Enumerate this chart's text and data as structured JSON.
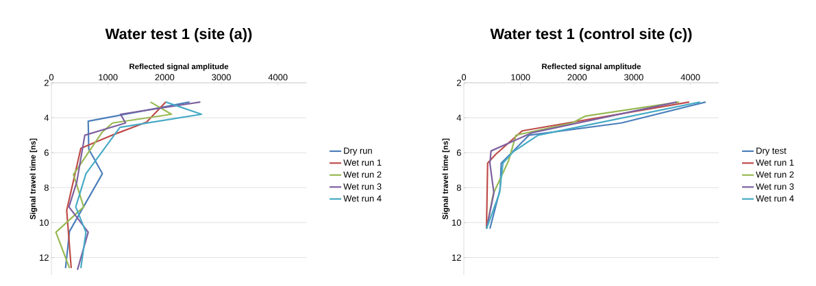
{
  "chart_data": [
    {
      "type": "line",
      "title": "Water test 1 (site (a))",
      "xlabel": "Reflected signal amplitude",
      "ylabel": "Signal travel time [ns]",
      "xlim": [
        0,
        4500
      ],
      "xticks": [
        0,
        1000,
        2000,
        3000,
        4000
      ],
      "ylim": [
        13,
        2
      ],
      "yticks": [
        2,
        4,
        6,
        8,
        10,
        12
      ],
      "grid": "y",
      "legend": "right",
      "series": [
        {
          "name": "Dry run",
          "color": "#4a7ebb",
          "x": [
            2440,
            650,
            660,
            900,
            320,
            250
          ],
          "values": [
            3.1,
            4.2,
            5.8,
            7.2,
            10.5,
            12.6
          ]
        },
        {
          "name": "Wet run 1",
          "color": "#be4b48",
          "x": [
            2020,
            1680,
            1110,
            520,
            270,
            350
          ],
          "values": [
            3.1,
            4.25,
            4.95,
            5.75,
            9.3,
            12.6
          ]
        },
        {
          "name": "Wet run 2",
          "color": "#98b954",
          "x": [
            1750,
            2120,
            1080,
            890,
            390,
            570,
            80,
            320
          ],
          "values": [
            3.1,
            3.8,
            4.3,
            4.85,
            7.25,
            9.1,
            10.55,
            12.6
          ]
        },
        {
          "name": "Wet run 3",
          "color": "#7d60a0",
          "x": [
            2630,
            1220,
            1310,
            590,
            450,
            310,
            650,
            460
          ],
          "values": [
            3.1,
            3.8,
            4.3,
            5.0,
            7.65,
            9.1,
            10.55,
            12.7
          ]
        },
        {
          "name": "Wet run 4",
          "color": "#46aac5",
          "x": [
            2020,
            2650,
            1210,
            610,
            430,
            610,
            520
          ],
          "values": [
            3.1,
            3.8,
            4.55,
            7.2,
            9.1,
            10.55,
            12.6
          ]
        }
      ]
    },
    {
      "type": "line",
      "title": "Water test 1 (control site (c))",
      "xlabel": "Reflected signal amplitude",
      "ylabel": "Signal travel time [ns]",
      "xlim": [
        0,
        4500
      ],
      "xticks": [
        0,
        1000,
        2000,
        3000,
        4000
      ],
      "ylim": [
        13,
        2
      ],
      "yticks": [
        2,
        4,
        6,
        8,
        10,
        12
      ],
      "grid": "y",
      "legend": "right",
      "series": [
        {
          "name": "Dry test",
          "color": "#4a7ebb",
          "x": [
            4270,
            2780,
            1150,
            660,
            640,
            460
          ],
          "values": [
            3.1,
            4.3,
            5.0,
            6.6,
            8.1,
            10.35
          ]
        },
        {
          "name": "Wet run 1",
          "color": "#be4b48",
          "x": [
            3980,
            1030,
            560,
            420,
            400
          ],
          "values": [
            3.1,
            4.75,
            6.1,
            6.6,
            10.3
          ]
        },
        {
          "name": "Wet run 2",
          "color": "#98b954",
          "x": [
            3800,
            2150,
            1910,
            920,
            790,
            520,
            400
          ],
          "values": [
            3.1,
            3.9,
            4.3,
            5.0,
            6.45,
            8.35,
            10.35
          ]
        },
        {
          "name": "Wet run 3",
          "color": "#7d60a0",
          "x": [
            3760,
            1210,
            480,
            460,
            530,
            400
          ],
          "values": [
            3.1,
            4.85,
            5.9,
            6.6,
            8.3,
            10.35
          ]
        },
        {
          "name": "Wet run 4",
          "color": "#46aac5",
          "x": [
            4170,
            1310,
            870,
            690,
            630,
            400
          ],
          "values": [
            3.1,
            5.0,
            5.95,
            6.6,
            8.3,
            10.35
          ]
        }
      ]
    }
  ]
}
